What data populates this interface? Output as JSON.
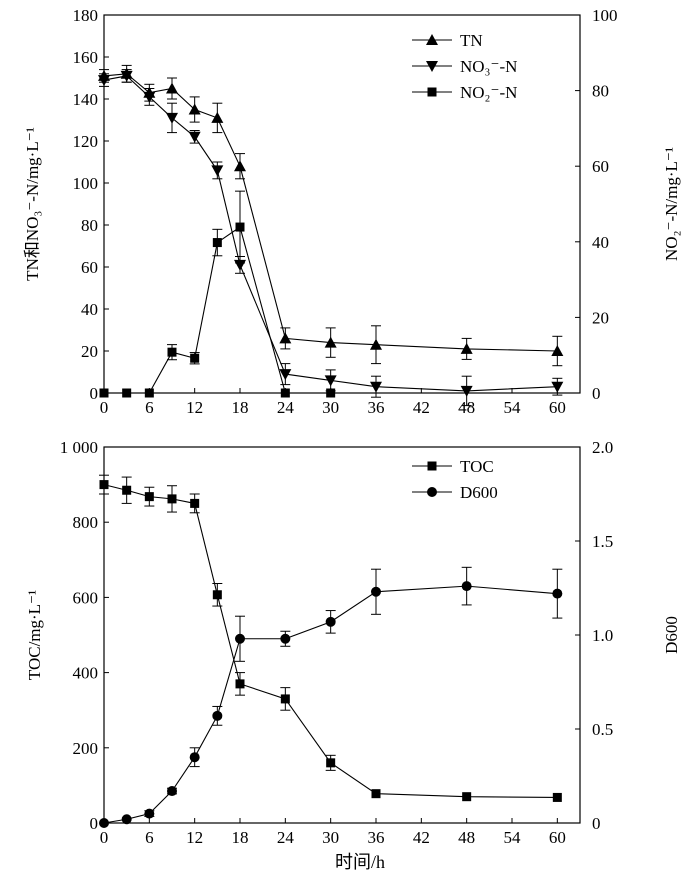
{
  "chart_data": [
    {
      "type": "line",
      "ylabel_left": "TN和NO₃⁻-N/mg·L⁻¹",
      "ylabel_right": "NO₂⁻-N/mg·L⁻¹",
      "xlim": [
        0,
        63
      ],
      "ylim_left": [
        0,
        180
      ],
      "ylim_right": [
        0,
        100
      ],
      "x_ticks": [
        "0",
        "6",
        "12",
        "18",
        "24",
        "30",
        "36",
        "42",
        "48",
        "54",
        "60"
      ],
      "y_left_ticks": [
        "0",
        "20",
        "40",
        "60",
        "80",
        "100",
        "120",
        "140",
        "160",
        "180"
      ],
      "y_right_ticks": [
        "0",
        "20",
        "40",
        "60",
        "80",
        "100"
      ],
      "legend_position": "top-right",
      "grid": false,
      "series": [
        {
          "name": "TN",
          "marker": "triangle-up",
          "axis": "left",
          "x": [
            0,
            3,
            6,
            9,
            12,
            15,
            18,
            24,
            30,
            36,
            48,
            60
          ],
          "y": [
            151,
            152,
            143,
            145,
            135,
            131,
            108,
            26,
            24,
            23,
            21,
            20
          ],
          "err": [
            3,
            4,
            4,
            5,
            6,
            7,
            6,
            5,
            7,
            9,
            5,
            7
          ]
        },
        {
          "name": "NO₃⁻-N",
          "marker": "triangle-down",
          "axis": "left",
          "x": [
            0,
            3,
            6,
            9,
            12,
            15,
            18,
            24,
            30,
            36,
            48,
            60
          ],
          "y": [
            149,
            151,
            141,
            131,
            122,
            106,
            61,
            9,
            6,
            3,
            1,
            3
          ],
          "err": [
            3,
            3,
            4,
            7,
            3,
            4,
            4,
            5,
            5,
            5,
            7,
            4
          ]
        },
        {
          "name": "NO₂⁻-N",
          "marker": "square",
          "axis": "right",
          "x": [
            0,
            3,
            6,
            9,
            12,
            15,
            18,
            24,
            30
          ],
          "y": [
            0,
            0,
            0,
            10.8,
            9.2,
            39.8,
            43.9,
            0,
            0
          ],
          "err": [
            0,
            0,
            0,
            2,
            1.5,
            3.5,
            9.5,
            0,
            0
          ]
        }
      ]
    },
    {
      "type": "line",
      "xlabel": "时间/h",
      "ylabel_left": "TOC/mg·L⁻¹",
      "ylabel_right": "D600",
      "xlim": [
        0,
        63
      ],
      "ylim_left": [
        0,
        1000
      ],
      "ylim_right": [
        0,
        2.0
      ],
      "x_ticks": [
        "0",
        "6",
        "12",
        "18",
        "24",
        "30",
        "36",
        "42",
        "48",
        "54",
        "60"
      ],
      "y_left_ticks": [
        "0",
        "200",
        "400",
        "600",
        "800",
        "1 000"
      ],
      "y_right_ticks": [
        "0",
        "0.5",
        "1.0",
        "1.5",
        "2.0"
      ],
      "legend_position": "top-right",
      "grid": false,
      "series": [
        {
          "name": "TOC",
          "marker": "square",
          "axis": "left",
          "x": [
            0,
            3,
            6,
            9,
            12,
            15,
            18,
            24,
            30,
            36,
            48,
            60
          ],
          "y": [
            900,
            885,
            868,
            862,
            850,
            607,
            370,
            330,
            160,
            78,
            70,
            68
          ],
          "err": [
            25,
            35,
            25,
            35,
            25,
            30,
            30,
            30,
            20,
            0,
            0,
            0
          ]
        },
        {
          "name": "D600",
          "marker": "circle",
          "axis": "right",
          "x": [
            0,
            3,
            6,
            9,
            12,
            15,
            18,
            24,
            30,
            36,
            48,
            60
          ],
          "y": [
            0,
            0.02,
            0.05,
            0.17,
            0.35,
            0.57,
            0.98,
            0.98,
            1.07,
            1.23,
            1.26,
            1.22
          ],
          "err": [
            0,
            0,
            0.015,
            0.015,
            0.05,
            0.05,
            0.12,
            0.04,
            0.06,
            0.12,
            0.1,
            0.13
          ]
        }
      ]
    }
  ]
}
